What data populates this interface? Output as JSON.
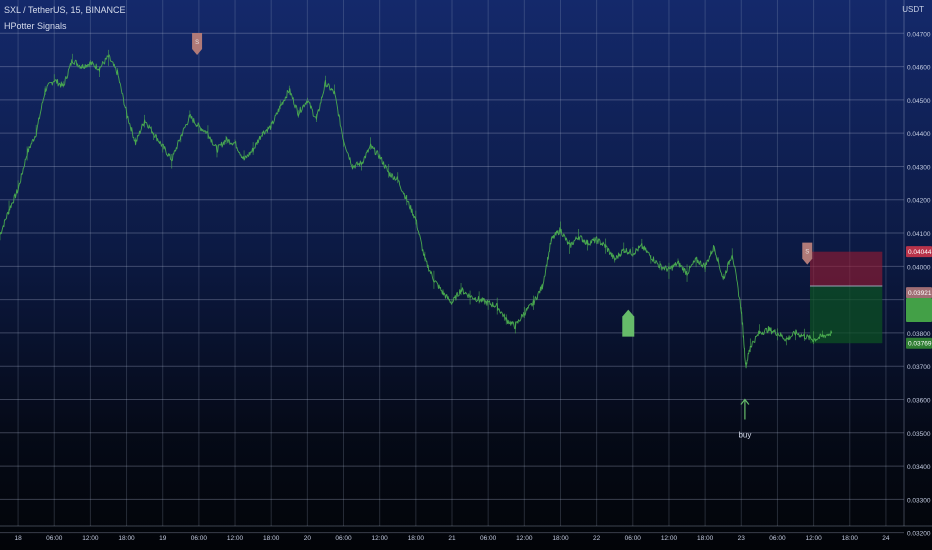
{
  "legend": {
    "symbol": "SXL / TetherUS, 15, BINANCE",
    "indicator": "HPotter Signals"
  },
  "chart_data": {
    "type": "line",
    "currency": "USDT",
    "ylim": [
      0.0322,
      0.048
    ],
    "yticks": [
      {
        "value": 0.047,
        "label": "0.04700"
      },
      {
        "value": 0.046,
        "label": "0.04600"
      },
      {
        "value": 0.045,
        "label": "0.04500"
      },
      {
        "value": 0.044,
        "label": "0.04400"
      },
      {
        "value": 0.043,
        "label": "0.04300"
      },
      {
        "value": 0.042,
        "label": "0.04200"
      },
      {
        "value": 0.041,
        "label": "0.04100"
      },
      {
        "value": 0.04,
        "label": "0.04000"
      },
      {
        "value": 0.039,
        "label": "0.03900"
      },
      {
        "value": 0.038,
        "label": "0.03800"
      },
      {
        "value": 0.037,
        "label": "0.03700"
      },
      {
        "value": 0.036,
        "label": "0.03600"
      },
      {
        "value": 0.035,
        "label": "0.03500"
      },
      {
        "value": 0.034,
        "label": "0.03400"
      },
      {
        "value": 0.033,
        "label": "0.03300"
      },
      {
        "value": 0.032,
        "label": "0.03200"
      }
    ],
    "xlim": [
      0,
      100
    ],
    "xticks": [
      {
        "t": 2,
        "label": "18"
      },
      {
        "t": 6,
        "label": "06:00"
      },
      {
        "t": 10,
        "label": "12:00"
      },
      {
        "t": 14,
        "label": "18:00"
      },
      {
        "t": 18,
        "label": "19"
      },
      {
        "t": 22,
        "label": "06:00"
      },
      {
        "t": 26,
        "label": "12:00"
      },
      {
        "t": 30,
        "label": "18:00"
      },
      {
        "t": 34,
        "label": "20"
      },
      {
        "t": 38,
        "label": "06:00"
      },
      {
        "t": 42,
        "label": "12:00"
      },
      {
        "t": 46,
        "label": "18:00"
      },
      {
        "t": 50,
        "label": "21"
      },
      {
        "t": 54,
        "label": "06:00"
      },
      {
        "t": 58,
        "label": "12:00"
      },
      {
        "t": 62,
        "label": "18:00"
      },
      {
        "t": 66,
        "label": "22"
      },
      {
        "t": 70,
        "label": "06:00"
      },
      {
        "t": 74,
        "label": "12:00"
      },
      {
        "t": 78,
        "label": "18:00"
      },
      {
        "t": 82,
        "label": "23"
      },
      {
        "t": 86,
        "label": "06:00"
      },
      {
        "t": 90,
        "label": "12:00"
      },
      {
        "t": 94,
        "label": "18:00"
      },
      {
        "t": 98,
        "label": "24"
      }
    ],
    "series": [
      {
        "color": "#4caf50",
        "points": [
          [
            0,
            0.04095
          ],
          [
            1,
            0.0417
          ],
          [
            2,
            0.0423
          ],
          [
            3,
            0.0434
          ],
          [
            4,
            0.044
          ],
          [
            5,
            0.0453
          ],
          [
            6,
            0.0456
          ],
          [
            7,
            0.0454
          ],
          [
            8,
            0.0462
          ],
          [
            9,
            0.046
          ],
          [
            10,
            0.0461
          ],
          [
            11,
            0.04595
          ],
          [
            12,
            0.0463
          ],
          [
            13,
            0.0458
          ],
          [
            14,
            0.0446
          ],
          [
            15,
            0.0437
          ],
          [
            16,
            0.0444
          ],
          [
            17,
            0.044
          ],
          [
            18,
            0.0436
          ],
          [
            19,
            0.0432
          ],
          [
            20,
            0.0439
          ],
          [
            21,
            0.0445
          ],
          [
            22,
            0.0442
          ],
          [
            23,
            0.044
          ],
          [
            24,
            0.0435
          ],
          [
            25,
            0.0438
          ],
          [
            26,
            0.0437
          ],
          [
            27,
            0.0432
          ],
          [
            28,
            0.0435
          ],
          [
            29,
            0.044
          ],
          [
            30,
            0.0442
          ],
          [
            31,
            0.0448
          ],
          [
            32,
            0.0453
          ],
          [
            33,
            0.0446
          ],
          [
            34,
            0.045
          ],
          [
            35,
            0.0444
          ],
          [
            36,
            0.0455
          ],
          [
            37,
            0.0452
          ],
          [
            38,
            0.0438
          ],
          [
            39,
            0.043
          ],
          [
            40,
            0.0431
          ],
          [
            41,
            0.0436
          ],
          [
            42,
            0.0433
          ],
          [
            43,
            0.0428
          ],
          [
            44,
            0.0426
          ],
          [
            45,
            0.042
          ],
          [
            46,
            0.0414
          ],
          [
            47,
            0.0402
          ],
          [
            48,
            0.0396
          ],
          [
            49,
            0.0392
          ],
          [
            50,
            0.0389
          ],
          [
            51,
            0.0393
          ],
          [
            52,
            0.0391
          ],
          [
            53,
            0.039
          ],
          [
            54,
            0.0389
          ],
          [
            55,
            0.0388
          ],
          [
            56,
            0.0384
          ],
          [
            57,
            0.0382
          ],
          [
            58,
            0.0386
          ],
          [
            59,
            0.0389
          ],
          [
            60,
            0.0394
          ],
          [
            61,
            0.0408
          ],
          [
            62,
            0.0411
          ],
          [
            63,
            0.0406
          ],
          [
            64,
            0.0409
          ],
          [
            65,
            0.0407
          ],
          [
            66,
            0.0408
          ],
          [
            67,
            0.0406
          ],
          [
            68,
            0.0402
          ],
          [
            69,
            0.0405
          ],
          [
            70,
            0.0404
          ],
          [
            71,
            0.0406
          ],
          [
            72,
            0.0403
          ],
          [
            73,
            0.04
          ],
          [
            74,
            0.0399
          ],
          [
            75,
            0.0401
          ],
          [
            76,
            0.0398
          ],
          [
            77,
            0.0402
          ],
          [
            78,
            0.04
          ],
          [
            79,
            0.0406
          ],
          [
            80,
            0.0396
          ],
          [
            81,
            0.0404
          ],
          [
            82,
            0.0387
          ],
          [
            82.5,
            0.037
          ],
          [
            83,
            0.0376
          ],
          [
            84,
            0.038
          ],
          [
            85,
            0.0381
          ],
          [
            86,
            0.038
          ],
          [
            87,
            0.0378
          ],
          [
            88,
            0.038
          ],
          [
            89,
            0.0379
          ],
          [
            90,
            0.0378
          ],
          [
            91,
            0.0379
          ],
          [
            92,
            0.038
          ]
        ]
      }
    ],
    "markers": [
      {
        "type": "sell",
        "t": 21.8,
        "price": 0.04665,
        "label": "S",
        "color": "#b07a78"
      },
      {
        "type": "buy-arrow",
        "t": 69.5,
        "price": 0.0387,
        "label": "",
        "color": "#66bb6a"
      },
      {
        "type": "buy",
        "t": 82.4,
        "price": 0.036,
        "label": "buy",
        "color": "#66bb6a"
      },
      {
        "type": "sell",
        "t": 89.3,
        "price": 0.04035,
        "label": "S",
        "color": "#b07a78"
      }
    ],
    "position": {
      "t_start": 89.6,
      "t_end": 97.6,
      "target": 0.04044,
      "entry": 0.03941,
      "stop": 0.03769,
      "tp_color": "rgba(150,28,50,0.62)",
      "sl_color": "rgba(12,82,34,0.72)"
    },
    "price_tags": [
      {
        "price": 0.04044,
        "label": "0.04044",
        "color": "#b8334a"
      },
      {
        "price": 0.03921,
        "label": "0.03921",
        "color": "#a06e74"
      },
      {
        "price": 0.03869,
        "label": "",
        "color": "#43a047"
      },
      {
        "price": 0.03769,
        "label": "0.03769",
        "color": "#2e7d32"
      }
    ]
  }
}
